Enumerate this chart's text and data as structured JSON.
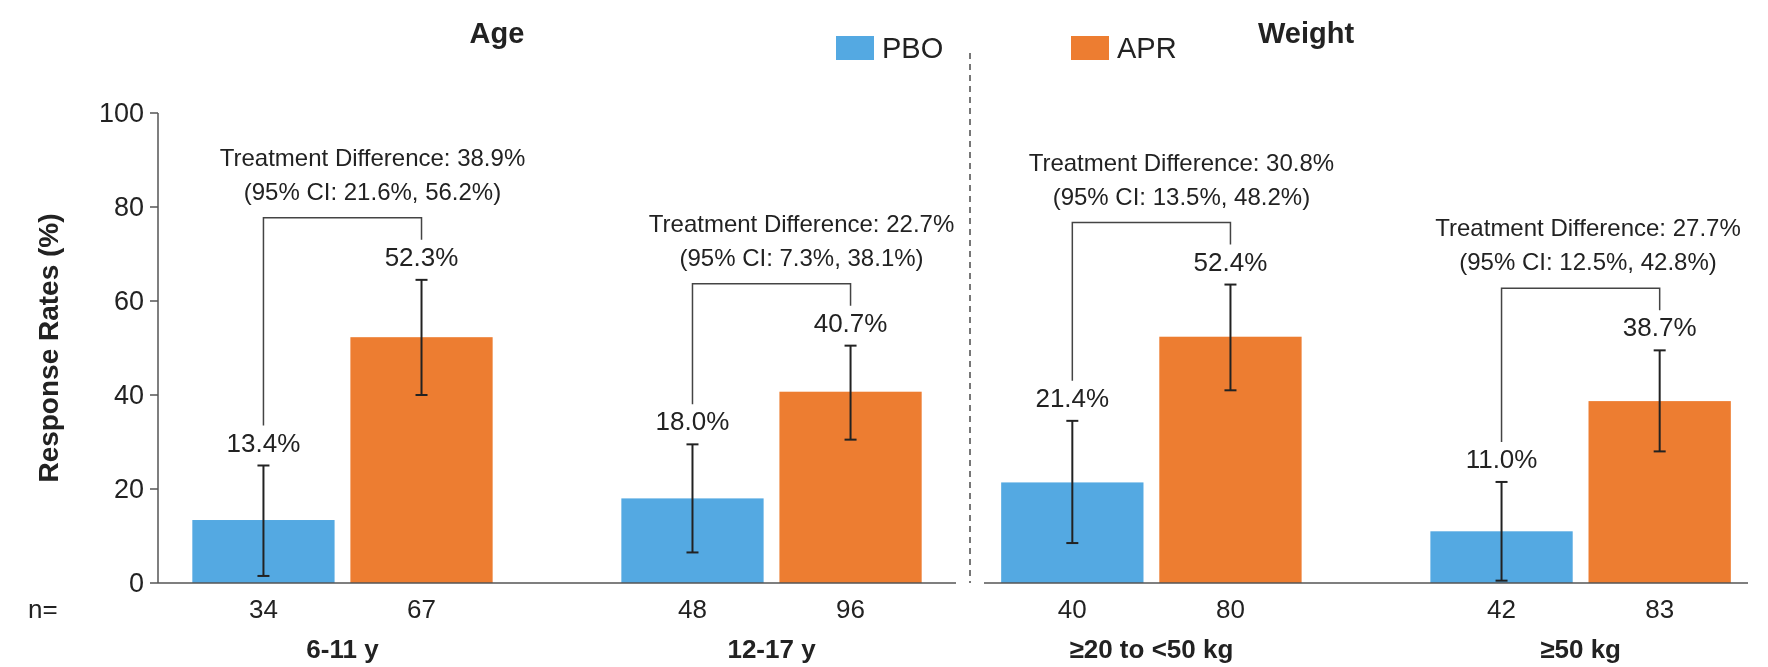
{
  "chart_data": [
    {
      "type": "bar",
      "title": "Age",
      "ylabel": "Response Rates (%)",
      "categories": [
        "6-11 y",
        "12-17 y"
      ],
      "series": [
        {
          "name": "PBO",
          "color": "#54a9e2",
          "values": [
            13.4,
            18.0
          ],
          "value_labels": [
            "13.4%",
            "18.0%"
          ],
          "errors": [
            [
              1.5,
              25
            ],
            [
              6.5,
              29.5
            ]
          ]
        },
        {
          "name": "APR",
          "color": "#ed7d31",
          "values": [
            52.3,
            40.7
          ],
          "value_labels": [
            "52.3%",
            "40.7%"
          ],
          "errors": [
            [
              40,
              64.5
            ],
            [
              30.5,
              50.5
            ]
          ]
        }
      ],
      "ylim": [
        0,
        100
      ],
      "yticks": [
        0,
        20,
        40,
        60,
        80,
        100
      ],
      "legend": "top right",
      "grid": false,
      "annotations": [
        "Treatment Difference: 38.9%\n(95% CI: 21.6%, 56.2%)",
        "Treatment Difference: 22.7%\n(95% CI: 7.3%, 38.1%)",
        "n=",
        "34",
        "67",
        "48",
        "96"
      ]
    },
    {
      "type": "bar",
      "title": "Weight",
      "categories": [
        "≥20 to <50 kg",
        "≥50 kg"
      ],
      "series": [
        {
          "color": "#54a9e2",
          "values": [
            21.4,
            11.0
          ],
          "value_labels": [
            "21.4%",
            "11.0%"
          ],
          "errors": [
            [
              8.5,
              34.5
            ],
            [
              0.5,
              21.5
            ]
          ]
        },
        {
          "color": "#ed7d31",
          "values": [
            52.4,
            38.7
          ],
          "value_labels": [
            "52.4%",
            "38.7%"
          ],
          "errors": [
            [
              41,
              63.5
            ],
            [
              28,
              49.5
            ]
          ]
        }
      ],
      "ylim": [
        0,
        100
      ],
      "tick_labels": "x",
      "grid": false,
      "annotations": [
        "Treatment Difference: 30.8%\n(95% CI: 13.5%, 48.2%)",
        "Treatment Difference: 27.7%\n(95% CI: 12.5%, 42.8%)",
        "40",
        "80",
        "42",
        "83"
      ]
    }
  ]
}
